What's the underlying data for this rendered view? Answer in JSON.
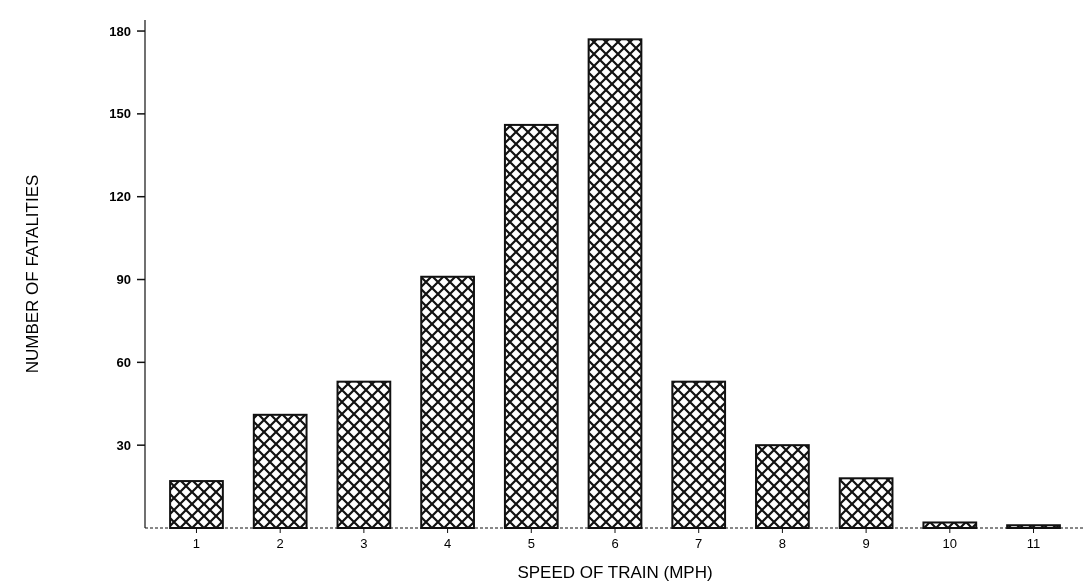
{
  "chart_data": {
    "type": "bar",
    "xlabel": "SPEED OF TRAIN (MPH)",
    "ylabel": "NUMBER OF FATALITIES",
    "categories": [
      "1",
      "2",
      "3",
      "4",
      "5",
      "6",
      "7",
      "8",
      "9",
      "10",
      "11"
    ],
    "values": [
      17,
      41,
      53,
      91,
      146,
      177,
      53,
      30,
      18,
      2,
      1
    ],
    "color": "#111111",
    "ylim": [
      0,
      184
    ],
    "yticks": [
      30,
      60,
      90,
      120,
      150,
      180
    ],
    "grid": false
  }
}
